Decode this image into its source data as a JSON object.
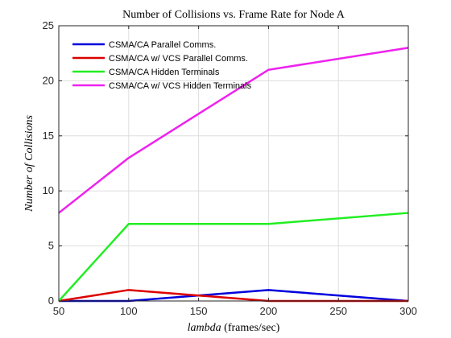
{
  "chart_data": {
    "type": "line",
    "title": "Number of Collisions vs. Frame Rate for Node A",
    "xlabel_italic": "lambda",
    "xlabel_unit": "(frames/sec)",
    "ylabel": "Number of Collisions",
    "x": [
      50,
      100,
      200,
      300
    ],
    "xlim": [
      50,
      300
    ],
    "ylim": [
      0,
      25
    ],
    "xticks": [
      50,
      100,
      150,
      200,
      250,
      300
    ],
    "yticks": [
      0,
      5,
      10,
      15,
      20,
      25
    ],
    "grid": true,
    "legend_position": "top-left",
    "series": [
      {
        "name": "CSMA/CA Parallel Comms.",
        "color": "#0000dd",
        "values": [
          0,
          0,
          1,
          0
        ]
      },
      {
        "name": "CSMA/CA w/ VCS Parallel Comms.",
        "color": "#dd0000",
        "values": [
          0,
          1,
          0,
          0
        ]
      },
      {
        "name": "CSMA/CA Hidden Terminals",
        "color": "#22ee22",
        "values": [
          0,
          7,
          7,
          8
        ]
      },
      {
        "name": "CSMA/CA w/ VCS Hidden Terminals",
        "color": "#ee22ee",
        "values": [
          8,
          13,
          21,
          23
        ]
      }
    ]
  }
}
